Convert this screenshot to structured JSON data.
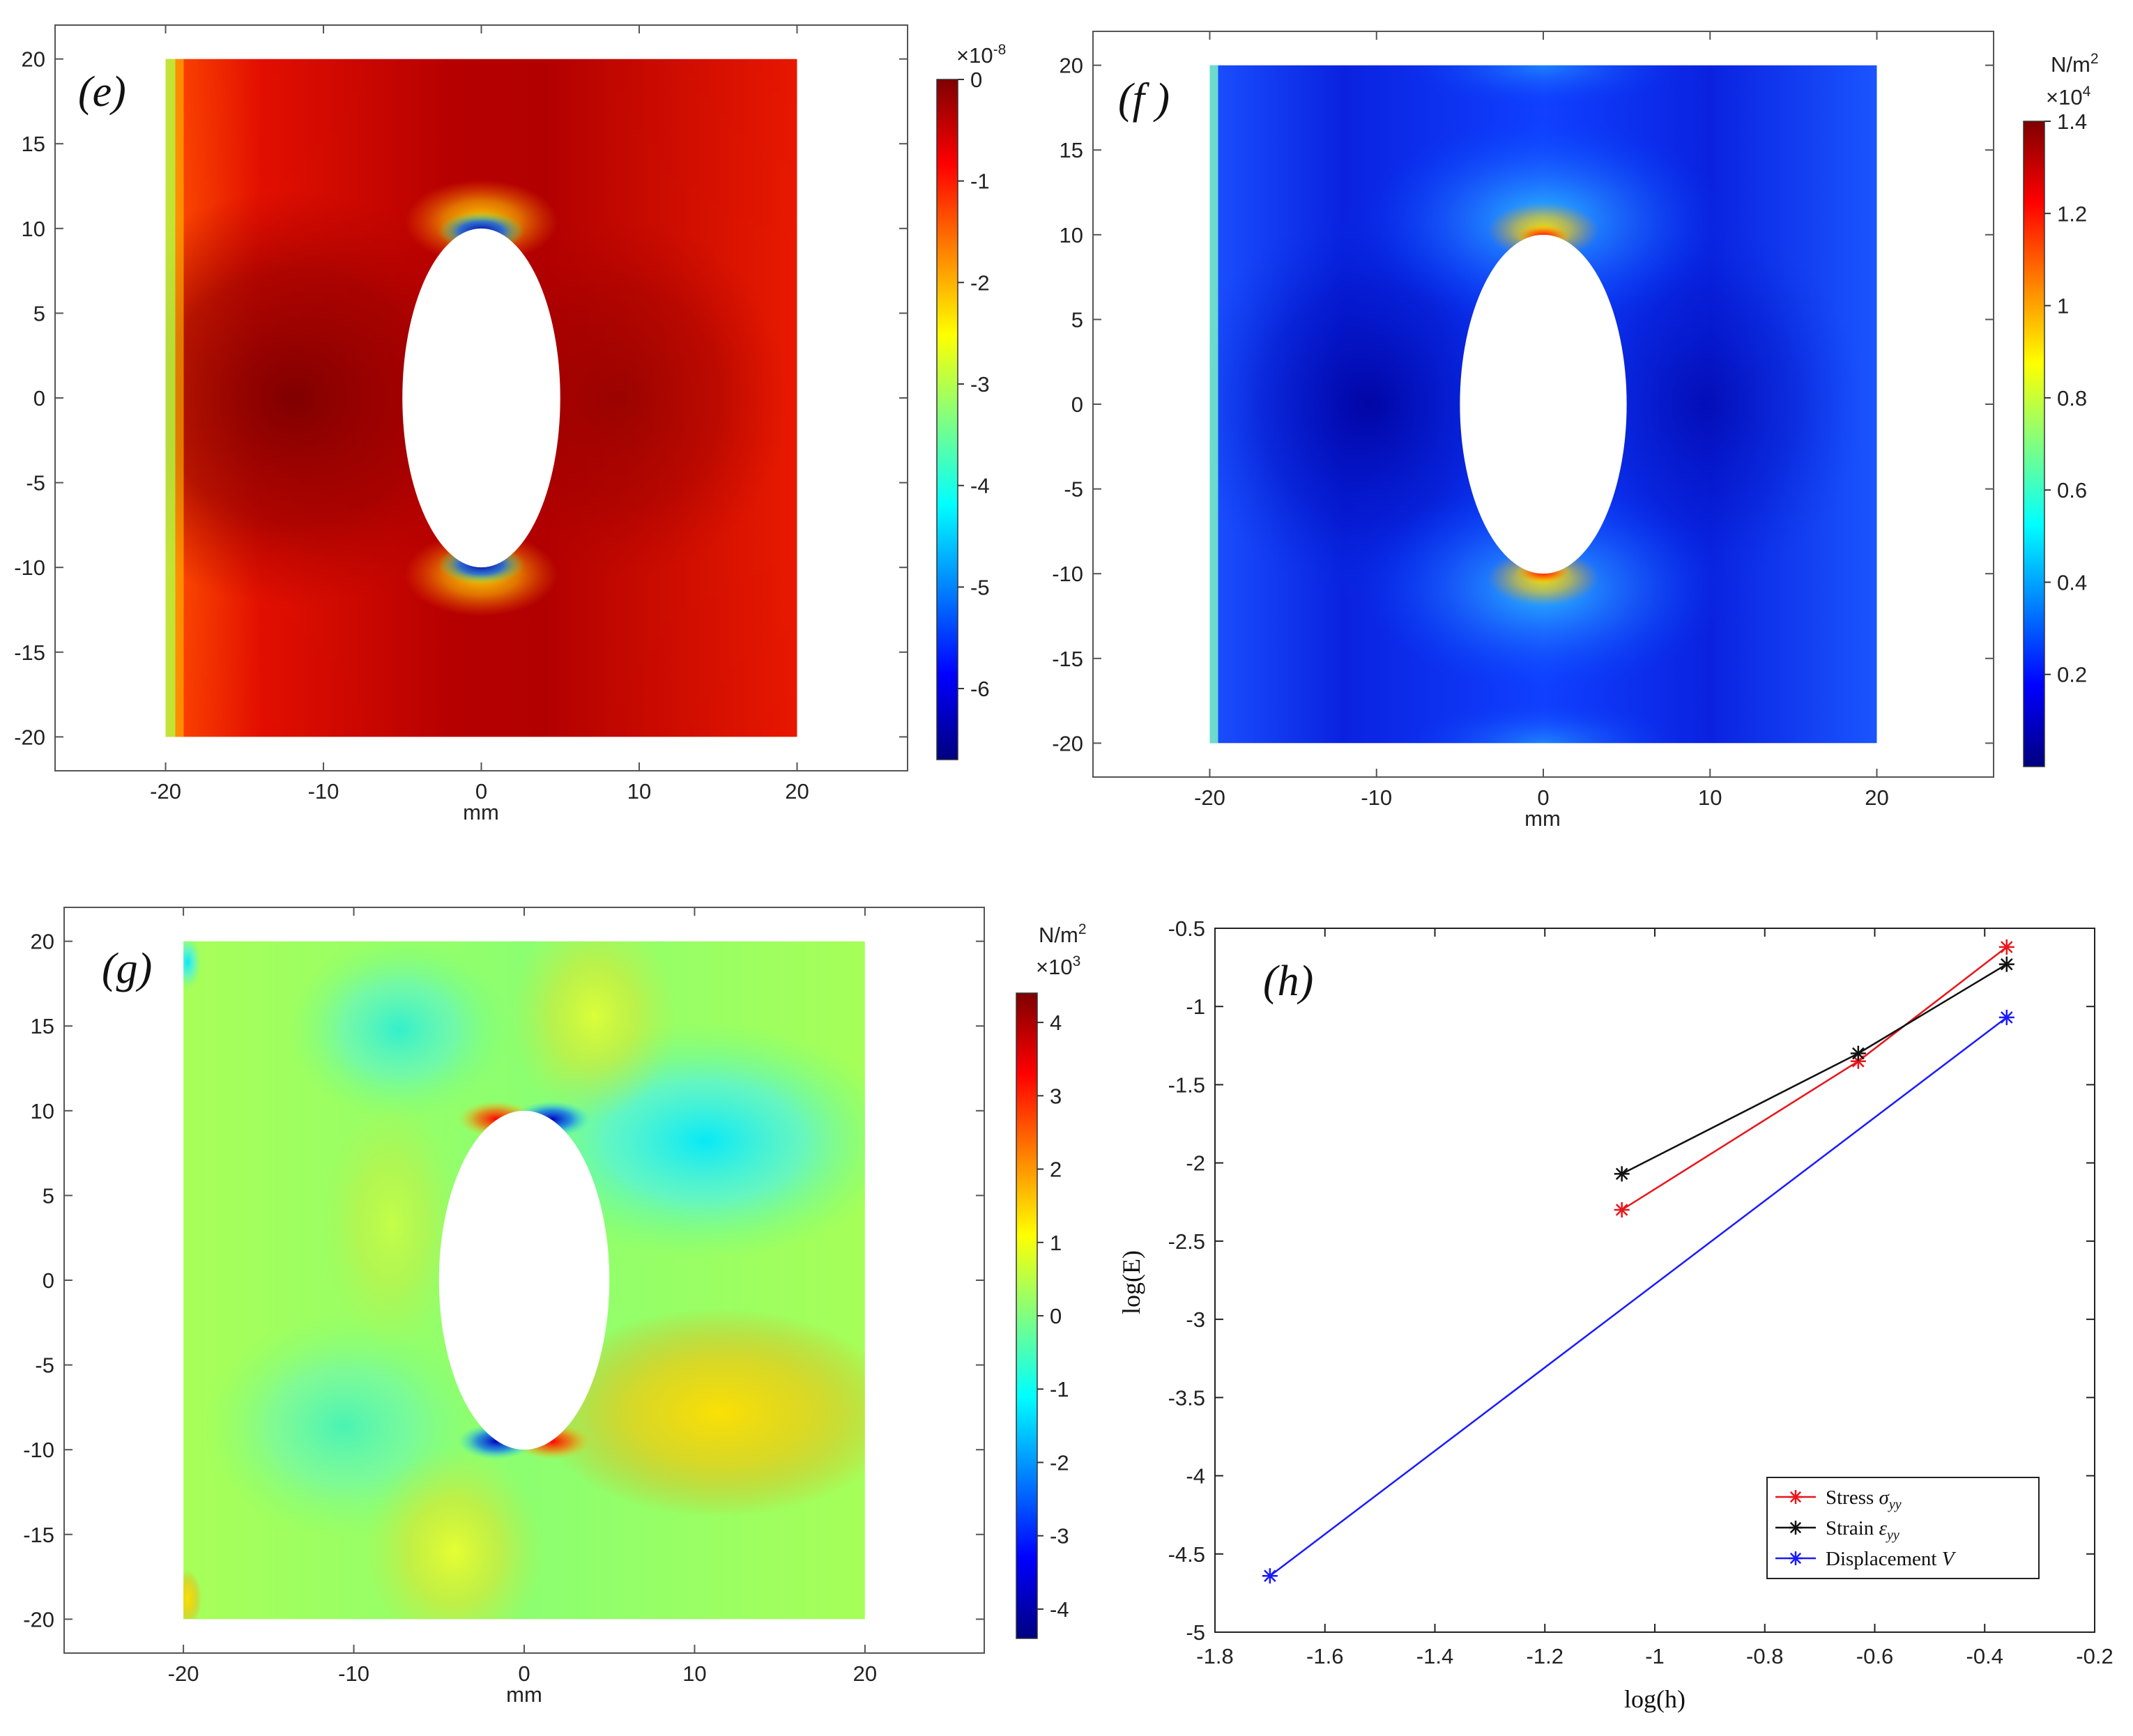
{
  "chart_data": [
    {
      "id": "e",
      "type": "heatmap",
      "panel_label": "(e)",
      "xlabel": "mm",
      "x_ticks": [
        "-20",
        "-10",
        "0",
        "10",
        "20"
      ],
      "y_ticks": [
        "20",
        "15",
        "10",
        "5",
        "0",
        "-5",
        "-10",
        "-15",
        "-20"
      ],
      "xlim": [
        -27,
        27
      ],
      "ylim": [
        -22,
        22
      ],
      "domain": {
        "x": [
          -20,
          20
        ],
        "y": [
          -20,
          20
        ],
        "ellipse_semi_axes": [
          5,
          10
        ]
      },
      "colorbar": {
        "unit": "",
        "multiplier": "×10",
        "multiplier_exp": "-8",
        "range": [
          -6.7,
          0
        ],
        "ticks": [
          "0",
          "-1",
          "-2",
          "-3",
          "-4",
          "-5",
          "-6"
        ],
        "colormap": "jet"
      }
    },
    {
      "id": "f",
      "type": "heatmap",
      "panel_label": "(f )",
      "xlabel": "mm",
      "x_ticks": [
        "-20",
        "-10",
        "0",
        "10",
        "20"
      ],
      "y_ticks": [
        "20",
        "15",
        "10",
        "5",
        "0",
        "-5",
        "-10",
        "-15",
        "-20"
      ],
      "xlim": [
        -27,
        27
      ],
      "ylim": [
        -22,
        22
      ],
      "domain": {
        "x": [
          -20,
          20
        ],
        "y": [
          -20,
          20
        ],
        "ellipse_semi_axes": [
          5,
          10
        ]
      },
      "colorbar": {
        "unit": "N/m",
        "unit_exp": "2",
        "multiplier": "×10",
        "multiplier_exp": "4",
        "range": [
          0.0,
          1.4
        ],
        "ticks": [
          "1.4",
          "1.2",
          "1",
          "0.8",
          "0.6",
          "0.4",
          "0.2"
        ],
        "colormap": "jet"
      }
    },
    {
      "id": "g",
      "type": "heatmap",
      "panel_label": "(g)",
      "xlabel": "mm",
      "x_ticks": [
        "-20",
        "-10",
        "0",
        "10",
        "20"
      ],
      "y_ticks": [
        "20",
        "15",
        "10",
        "5",
        "0",
        "-5",
        "-10",
        "-15",
        "-20"
      ],
      "xlim": [
        -27,
        27
      ],
      "ylim": [
        -22,
        22
      ],
      "domain": {
        "x": [
          -20,
          20
        ],
        "y": [
          -20,
          20
        ],
        "ellipse_semi_axes": [
          5,
          10
        ]
      },
      "colorbar": {
        "unit": "N/m",
        "unit_exp": "2",
        "multiplier": "×10",
        "multiplier_exp": "3",
        "range": [
          -4.4,
          4.4
        ],
        "ticks": [
          "4",
          "3",
          "2",
          "1",
          "0",
          "-1",
          "-2",
          "-3",
          "-4"
        ],
        "colormap": "jet"
      }
    },
    {
      "id": "h",
      "type": "line",
      "panel_label": "(h)",
      "xlabel": "log(h)",
      "ylabel": "log(E)",
      "xlim": [
        -1.8,
        -0.2
      ],
      "ylim": [
        -5,
        -0.5
      ],
      "x_ticks": [
        "-1.8",
        "-1.6",
        "-1.4",
        "-1.2",
        "-1",
        "-0.8",
        "-0.6",
        "-0.4",
        "-0.2"
      ],
      "y_ticks": [
        "-0.5",
        "-1",
        "-1.5",
        "-2",
        "-2.5",
        "-3",
        "-3.5",
        "-4",
        "-4.5",
        "-5"
      ],
      "legend_position": "bottom-right",
      "series": [
        {
          "name": "Stress",
          "symbol": "σ",
          "sub": "yy",
          "color": "#e8161b",
          "x": [
            -1.06,
            -0.63,
            -0.36
          ],
          "y": [
            -2.3,
            -1.35,
            -0.62
          ]
        },
        {
          "name": "Strain",
          "symbol": "ε",
          "sub": "yy",
          "color": "#111111",
          "x": [
            -1.06,
            -0.63,
            -0.36
          ],
          "y": [
            -2.07,
            -1.3,
            -0.73
          ]
        },
        {
          "name": "Displacement",
          "symbol": "V",
          "sub": "",
          "color": "#1a1aff",
          "x": [
            -1.7,
            -0.36
          ],
          "y": [
            -4.64,
            -1.07
          ]
        }
      ]
    }
  ]
}
